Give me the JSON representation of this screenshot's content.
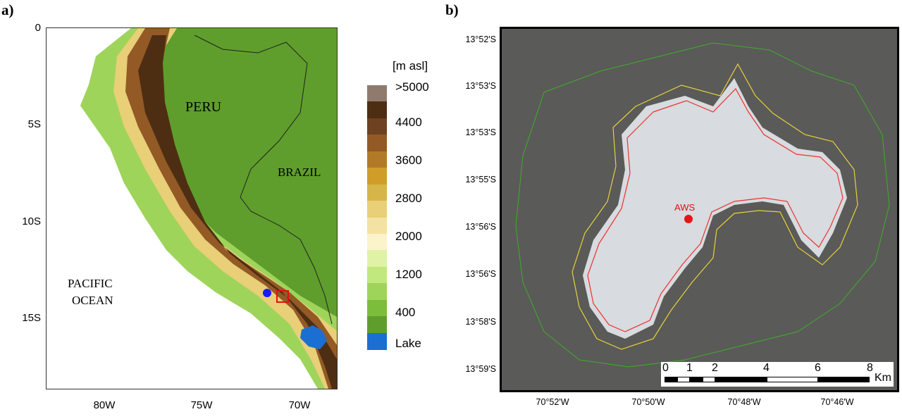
{
  "panel_a": {
    "label": "a)",
    "y_ticks": [
      "0",
      "5S",
      "10S",
      "15S"
    ],
    "x_ticks": [
      "80W",
      "75W",
      "70W"
    ],
    "regions": {
      "peru": "PERU",
      "brazil": "BRAZIL",
      "ocean_line1": "PACIFIC",
      "ocean_line2": "OCEAN"
    },
    "legend": {
      "title": "[m asl]",
      "labels": [
        ">5000",
        "4400",
        "3600",
        "2800",
        "2000",
        "1200",
        "400",
        "Lake"
      ],
      "colors": [
        "#8f7b6d",
        "#4e2e13",
        "#6e4220",
        "#935a26",
        "#b27a26",
        "#cf9e28",
        "#d8b548",
        "#e8cf78",
        "#f3e2a4",
        "#fbf3c9",
        "#dff2a6",
        "#c0e87c",
        "#9fd45a",
        "#7cbd3c",
        "#5f9e2c",
        "#1c6fd2"
      ]
    }
  },
  "panel_b": {
    "label": "b)",
    "y_ticks": [
      "13°52'S",
      "13°53'S",
      "13°53'S",
      "13°55'S",
      "13°56'S",
      "13°56'S",
      "13°58'S",
      "13°59'S"
    ],
    "x_ticks": [
      "70°52'W",
      "70°50'W",
      "70°48'W",
      "70°46'W"
    ],
    "station_label": "AWS",
    "scalebar": {
      "numbers": [
        "0",
        "1",
        "2",
        "4",
        "6",
        "8"
      ],
      "unit": "Km"
    },
    "contour_colors": {
      "outer": "#3fae2a",
      "middle": "#e6d23a",
      "inner": "#e8332e"
    }
  }
}
